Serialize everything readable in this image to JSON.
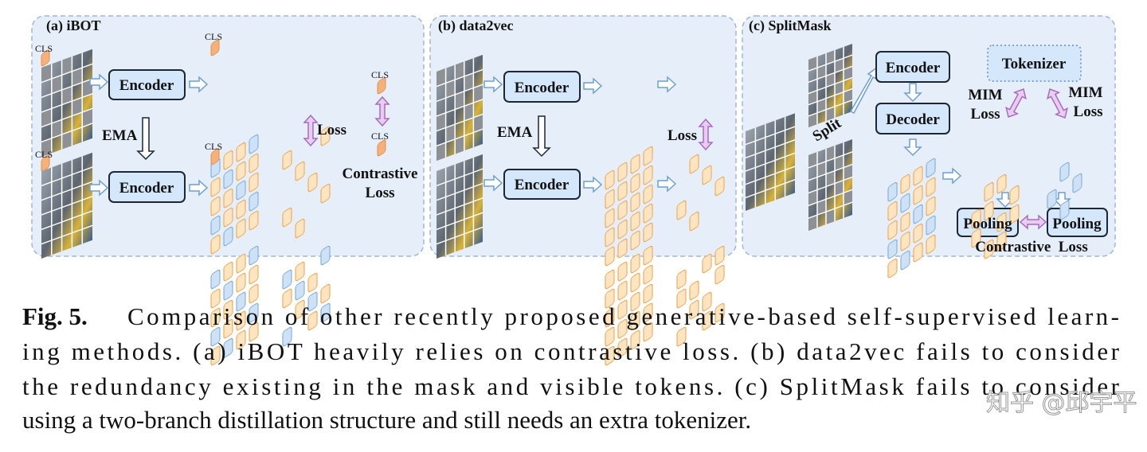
{
  "panel_a": {
    "title": "(a) iBOT",
    "cls": [
      "CLS",
      "CLS",
      "CLS",
      "CLS",
      "CLS",
      "CLS"
    ],
    "encoder_top": "Encoder",
    "encoder_bottom": "Encoder",
    "ema": "EMA",
    "loss": "Loss",
    "contrastive_loss": [
      "Contrastive",
      "Loss"
    ]
  },
  "panel_b": {
    "title": "(b) data2vec",
    "encoder_top": "Encoder",
    "encoder_bottom": "Encoder",
    "ema": "EMA",
    "loss": "Loss"
  },
  "panel_c": {
    "title": "(c) SplitMask",
    "encoder": "Encoder",
    "decoder": "Decoder",
    "split": "Split",
    "tokenizer": "Tokenizer",
    "mim_loss_left": [
      "MIM",
      "Loss"
    ],
    "mim_loss_right": [
      "MIM",
      "Loss"
    ],
    "pooling_left": "Pooling",
    "pooling_right": "Pooling",
    "contrastive_loss": "Contrastive  Loss"
  },
  "caption": {
    "label": "Fig. 5.",
    "lines": [
      "Comparison of other recently proposed generative-based self-supervised learn-",
      "ing methods. (a) iBOT heavily relies on contrastive loss. (b) data2vec fails to consider",
      "the redundancy existing in the mask and visible tokens. (c) SplitMask fails to consider",
      "using a two-branch distillation structure and still needs an extra tokenizer."
    ]
  },
  "watermark": "知乎 @邱宇平"
}
